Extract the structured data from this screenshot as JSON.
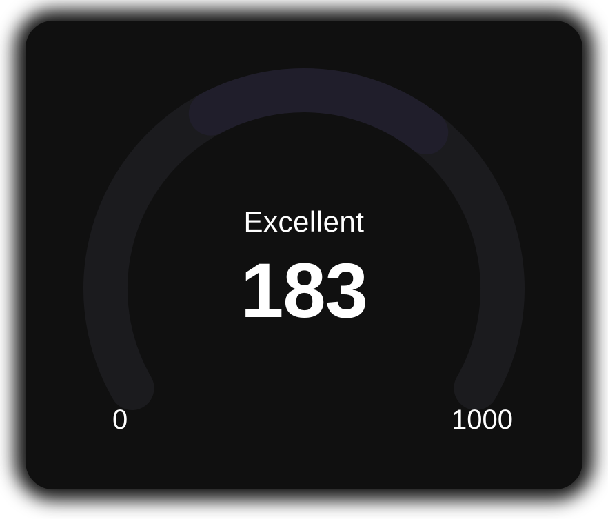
{
  "gauge": {
    "status_label": "Excellent",
    "score": "183",
    "min_label": "0",
    "max_label": "1000",
    "min_value": 0,
    "max_value": 1000,
    "value": 183,
    "track_color": "#1b1b1e",
    "progress_color": "#201e2b"
  }
}
